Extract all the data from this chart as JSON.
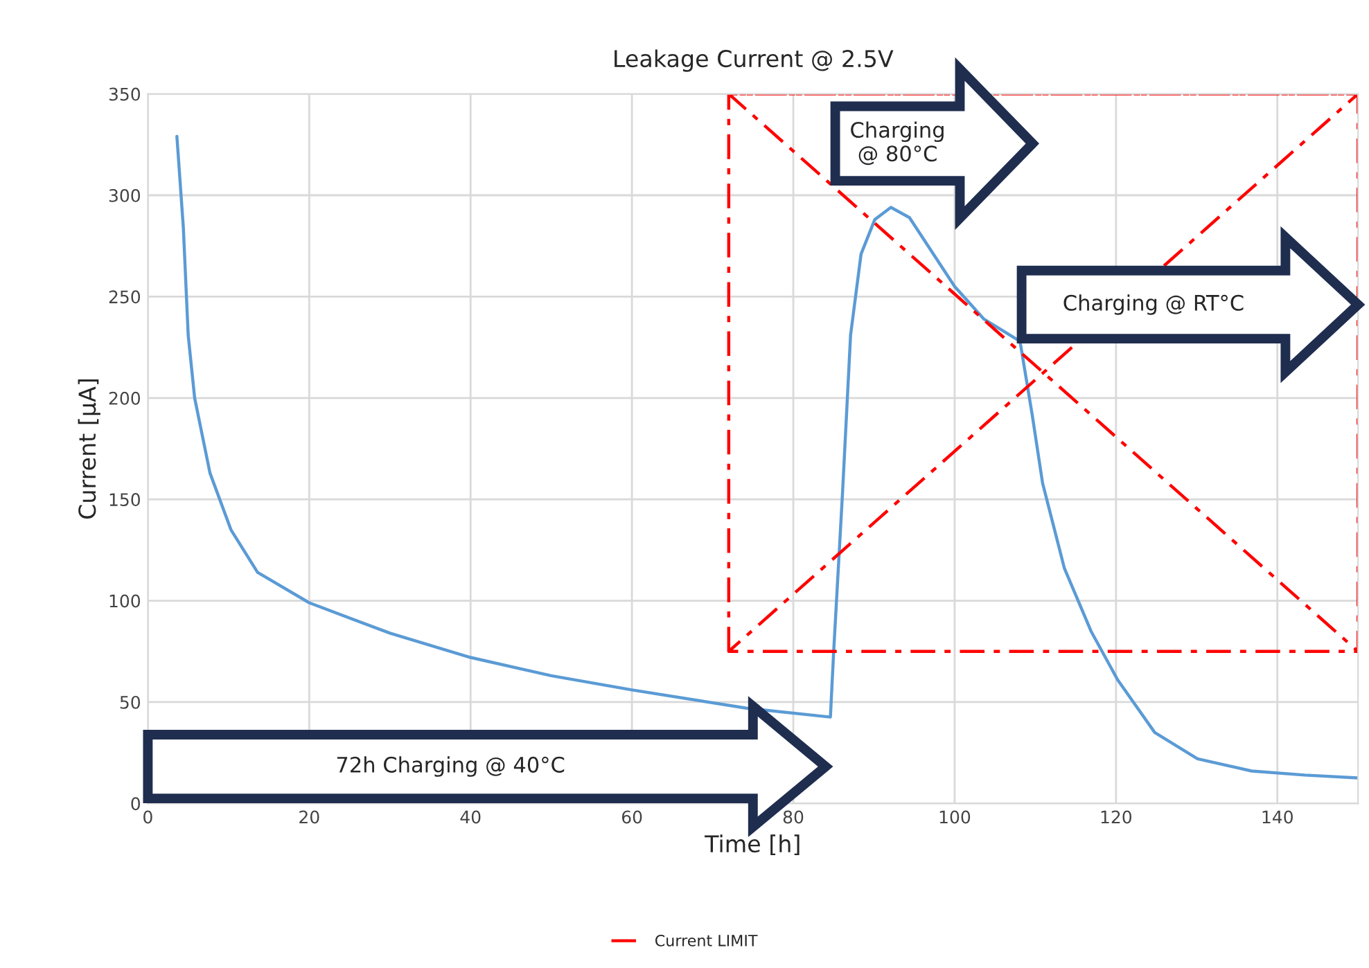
{
  "chart_data": {
    "type": "line",
    "title": "Leakage Current @ 2.5V",
    "xlabel": "Time [h]",
    "ylabel": "Current [µA]",
    "xlim": [
      0,
      150
    ],
    "xticks": [
      0,
      20,
      40,
      60,
      80,
      100,
      120,
      140
    ],
    "ylim": [
      0,
      350
    ],
    "yticks": [
      0,
      50,
      100,
      150,
      200,
      250,
      300,
      350
    ],
    "grid": true,
    "legend": "bottom",
    "marker": "none",
    "series": [
      {
        "color": "#5b9bd5",
        "line_style": "solid",
        "x": [
          3.6,
          4.4,
          5.0,
          5.8,
          7.7,
          10.3,
          13.6,
          20,
          30,
          40,
          50,
          60,
          74.2,
          84.6,
          85,
          86.1,
          87.1,
          88.4,
          90.1,
          92.1,
          94.4,
          100,
          103.6,
          108.1,
          109.6,
          110.9,
          113.6,
          116.9,
          120.2,
          124.8,
          130.1,
          136.8,
          143.4,
          150
        ],
        "values": [
          329,
          284,
          231,
          200,
          163,
          135,
          114,
          99,
          84,
          72,
          63,
          56,
          47,
          42.6,
          74.5,
          153,
          231,
          271,
          288,
          294,
          289,
          255,
          239,
          228,
          192,
          158,
          116,
          85,
          61,
          35,
          22,
          16,
          14,
          12.6
        ]
      },
      {
        "name": "Current LIMIT",
        "color": "#ff0000",
        "line_style": "dashed",
        "x": [
          72,
          72,
          150,
          150,
          72,
          150,
          72,
          150
        ],
        "values": [
          75,
          350,
          350,
          75,
          75,
          350,
          350,
          75
        ]
      }
    ],
    "annotations": [
      "72h Charging @ 40°C",
      "Charging\n@ 80°C",
      "Charging @ RT°C"
    ]
  }
}
